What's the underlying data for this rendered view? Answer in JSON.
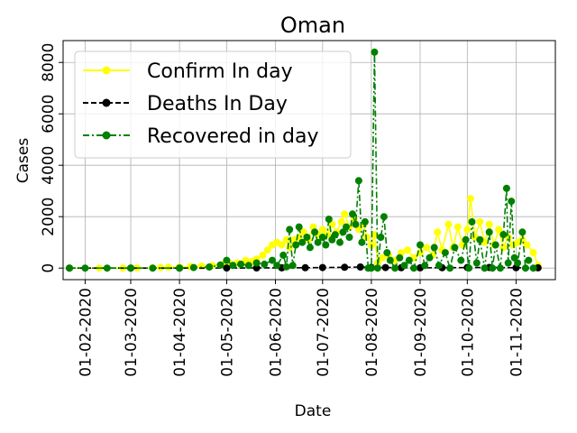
{
  "chart_data": {
    "type": "line",
    "title": "Oman",
    "xlabel": "Date",
    "ylabel": "Cases",
    "grid": true,
    "legend_position": "top-left",
    "x_ticks": [
      "01-02-2020",
      "01-03-2020",
      "01-04-2020",
      "01-05-2020",
      "01-06-2020",
      "01-07-2020",
      "01-08-2020",
      "01-09-2020",
      "01-10-2020",
      "01-11-2020"
    ],
    "y_ticks": [
      "0",
      "2000",
      "4000",
      "6000",
      "8000"
    ],
    "ylim": [
      -450,
      8850
    ],
    "x_range": [
      "2020-01-18",
      "2020-11-26"
    ],
    "series": [
      {
        "name": "Confirm In day",
        "color": "#ffff00",
        "linestyle": "solid",
        "points": [
          [
            "2020-01-22",
            0
          ],
          [
            "2020-02-10",
            0
          ],
          [
            "2020-02-25",
            2
          ],
          [
            "2020-03-05",
            6
          ],
          [
            "2020-03-15",
            5
          ],
          [
            "2020-03-20",
            20
          ],
          [
            "2020-03-25",
            30
          ],
          [
            "2020-04-01",
            40
          ],
          [
            "2020-04-08",
            60
          ],
          [
            "2020-04-15",
            80
          ],
          [
            "2020-04-22",
            100
          ],
          [
            "2020-04-29",
            150
          ],
          [
            "2020-05-03",
            180
          ],
          [
            "2020-05-08",
            200
          ],
          [
            "2020-05-13",
            300
          ],
          [
            "2020-05-17",
            250
          ],
          [
            "2020-05-20",
            350
          ],
          [
            "2020-05-24",
            500
          ],
          [
            "2020-05-27",
            700
          ],
          [
            "2020-05-30",
            900
          ],
          [
            "2020-06-02",
            1000
          ],
          [
            "2020-06-05",
            900
          ],
          [
            "2020-06-08",
            1100
          ],
          [
            "2020-06-10",
            800
          ],
          [
            "2020-06-13",
            1100
          ],
          [
            "2020-06-16",
            1200
          ],
          [
            "2020-06-19",
            1400
          ],
          [
            "2020-06-22",
            1100
          ],
          [
            "2020-06-25",
            1600
          ],
          [
            "2020-06-28",
            1300
          ],
          [
            "2020-07-01",
            1500
          ],
          [
            "2020-07-04",
            1300
          ],
          [
            "2020-07-07",
            1700
          ],
          [
            "2020-07-10",
            1400
          ],
          [
            "2020-07-13",
            1800
          ],
          [
            "2020-07-15",
            2100
          ],
          [
            "2020-07-18",
            1600
          ],
          [
            "2020-07-21",
            1900
          ],
          [
            "2020-07-24",
            1500
          ],
          [
            "2020-07-27",
            1700
          ],
          [
            "2020-07-29",
            1200
          ],
          [
            "2020-08-01",
            900
          ],
          [
            "2020-08-03",
            1300
          ],
          [
            "2020-08-05",
            200
          ],
          [
            "2020-08-08",
            400
          ],
          [
            "2020-08-12",
            500
          ],
          [
            "2020-08-16",
            300
          ],
          [
            "2020-08-20",
            600
          ],
          [
            "2020-08-24",
            700
          ],
          [
            "2020-08-28",
            400
          ],
          [
            "2020-09-01",
            600
          ],
          [
            "2020-09-05",
            800
          ],
          [
            "2020-09-09",
            500
          ],
          [
            "2020-09-12",
            1400
          ],
          [
            "2020-09-15",
            700
          ],
          [
            "2020-09-19",
            1700
          ],
          [
            "2020-09-22",
            800
          ],
          [
            "2020-09-25",
            1600
          ],
          [
            "2020-09-28",
            900
          ],
          [
            "2020-10-01",
            1500
          ],
          [
            "2020-10-03",
            2700
          ],
          [
            "2020-10-06",
            1200
          ],
          [
            "2020-10-09",
            1800
          ],
          [
            "2020-10-12",
            1000
          ],
          [
            "2020-10-15",
            1700
          ],
          [
            "2020-10-18",
            900
          ],
          [
            "2020-10-21",
            1500
          ],
          [
            "2020-10-24",
            800
          ],
          [
            "2020-10-27",
            1200
          ],
          [
            "2020-10-30",
            900
          ],
          [
            "2020-11-02",
            1000
          ],
          [
            "2020-11-05",
            1100
          ],
          [
            "2020-11-08",
            900
          ],
          [
            "2020-11-12",
            600
          ],
          [
            "2020-11-15",
            100
          ]
        ]
      },
      {
        "name": "Deaths In Day",
        "color": "#000000",
        "linestyle": "dashed",
        "points": [
          [
            "2020-01-22",
            0
          ],
          [
            "2020-03-01",
            0
          ],
          [
            "2020-04-01",
            0
          ],
          [
            "2020-05-01",
            2
          ],
          [
            "2020-05-20",
            5
          ],
          [
            "2020-06-05",
            10
          ],
          [
            "2020-06-20",
            15
          ],
          [
            "2020-07-01",
            20
          ],
          [
            "2020-07-15",
            30
          ],
          [
            "2020-07-25",
            40
          ],
          [
            "2020-08-01",
            25
          ],
          [
            "2020-08-10",
            20
          ],
          [
            "2020-08-20",
            15
          ],
          [
            "2020-09-01",
            10
          ],
          [
            "2020-09-15",
            15
          ],
          [
            "2020-10-01",
            20
          ],
          [
            "2020-10-15",
            25
          ],
          [
            "2020-11-01",
            15
          ],
          [
            "2020-11-15",
            10
          ]
        ]
      },
      {
        "name": "Recovered in day",
        "color": "#008000",
        "linestyle": "dashdot",
        "points": [
          [
            "2020-01-22",
            0
          ],
          [
            "2020-02-01",
            0
          ],
          [
            "2020-02-15",
            0
          ],
          [
            "2020-03-01",
            0
          ],
          [
            "2020-03-15",
            0
          ],
          [
            "2020-04-01",
            0
          ],
          [
            "2020-04-10",
            20
          ],
          [
            "2020-04-20",
            40
          ],
          [
            "2020-04-27",
            120
          ],
          [
            "2020-05-01",
            300
          ],
          [
            "2020-05-05",
            100
          ],
          [
            "2020-05-10",
            150
          ],
          [
            "2020-05-15",
            100
          ],
          [
            "2020-05-20",
            200
          ],
          [
            "2020-05-25",
            150
          ],
          [
            "2020-05-30",
            300
          ],
          [
            "2020-06-02",
            100
          ],
          [
            "2020-06-06",
            500
          ],
          [
            "2020-06-08",
            50
          ],
          [
            "2020-06-10",
            1500
          ],
          [
            "2020-06-12",
            100
          ],
          [
            "2020-06-14",
            900
          ],
          [
            "2020-06-16",
            1600
          ],
          [
            "2020-06-18",
            1000
          ],
          [
            "2020-06-21",
            1200
          ],
          [
            "2020-06-23",
            800
          ],
          [
            "2020-06-26",
            1400
          ],
          [
            "2020-06-28",
            1000
          ],
          [
            "2020-07-01",
            1200
          ],
          [
            "2020-07-03",
            900
          ],
          [
            "2020-07-05",
            1900
          ],
          [
            "2020-07-07",
            1100
          ],
          [
            "2020-07-09",
            1300
          ],
          [
            "2020-07-12",
            1000
          ],
          [
            "2020-07-14",
            1400
          ],
          [
            "2020-07-16",
            1600
          ],
          [
            "2020-07-18",
            1200
          ],
          [
            "2020-07-20",
            2100
          ],
          [
            "2020-07-22",
            1700
          ],
          [
            "2020-07-24",
            3400
          ],
          [
            "2020-07-26",
            1000
          ],
          [
            "2020-07-28",
            1800
          ],
          [
            "2020-07-30",
            0
          ],
          [
            "2020-08-01",
            0
          ],
          [
            "2020-08-03",
            8400
          ],
          [
            "2020-08-05",
            0
          ],
          [
            "2020-08-07",
            1200
          ],
          [
            "2020-08-09",
            2000
          ],
          [
            "2020-08-11",
            600
          ],
          [
            "2020-08-13",
            300
          ],
          [
            "2020-08-16",
            0
          ],
          [
            "2020-08-19",
            400
          ],
          [
            "2020-08-22",
            100
          ],
          [
            "2020-08-25",
            300
          ],
          [
            "2020-08-28",
            0
          ],
          [
            "2020-09-01",
            900
          ],
          [
            "2020-09-04",
            100
          ],
          [
            "2020-09-07",
            400
          ],
          [
            "2020-09-10",
            800
          ],
          [
            "2020-09-13",
            100
          ],
          [
            "2020-09-17",
            600
          ],
          [
            "2020-09-20",
            0
          ],
          [
            "2020-09-23",
            800
          ],
          [
            "2020-09-27",
            300
          ],
          [
            "2020-09-30",
            1100
          ],
          [
            "2020-10-02",
            0
          ],
          [
            "2020-10-04",
            1800
          ],
          [
            "2020-10-07",
            200
          ],
          [
            "2020-10-09",
            1100
          ],
          [
            "2020-10-12",
            0
          ],
          [
            "2020-10-15",
            1400
          ],
          [
            "2020-10-17",
            0
          ],
          [
            "2020-10-19",
            900
          ],
          [
            "2020-10-22",
            0
          ],
          [
            "2020-10-24",
            1300
          ],
          [
            "2020-10-26",
            3100
          ],
          [
            "2020-10-27",
            200
          ],
          [
            "2020-10-29",
            2600
          ],
          [
            "2020-10-31",
            400
          ],
          [
            "2020-11-02",
            200
          ],
          [
            "2020-11-05",
            1400
          ],
          [
            "2020-11-07",
            0
          ],
          [
            "2020-11-09",
            300
          ],
          [
            "2020-11-12",
            0
          ]
        ]
      }
    ]
  }
}
